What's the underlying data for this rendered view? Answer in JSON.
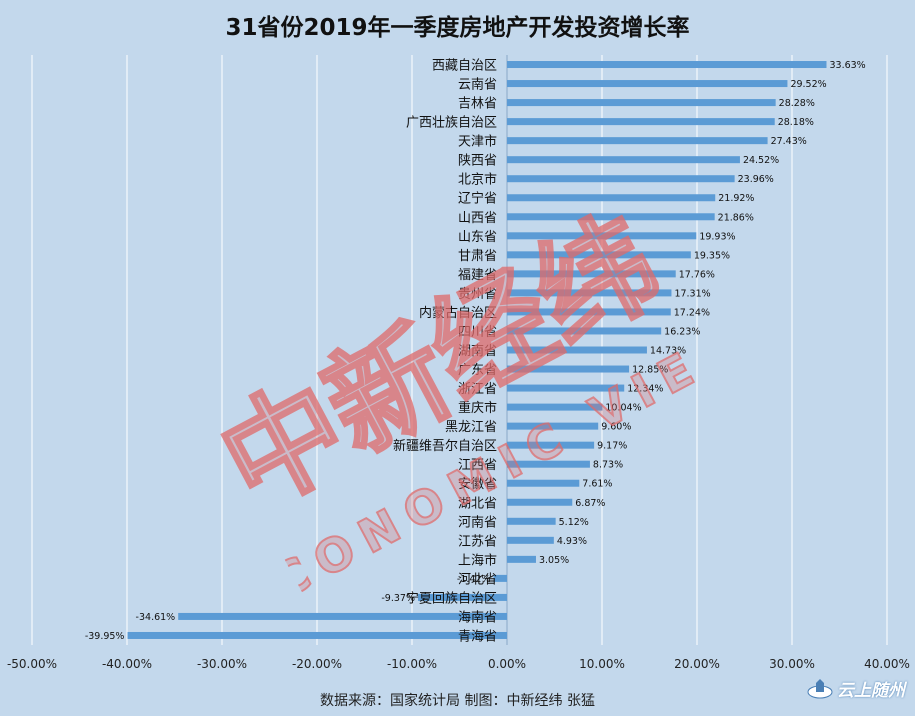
{
  "chart_data": {
    "type": "bar",
    "orientation": "horizontal",
    "title": "31省份2019年一季度房地产开发投资增长率",
    "categories": [
      "西藏自治区",
      "云南省",
      "吉林省",
      "广西壮族自治区",
      "天津市",
      "陕西省",
      "北京市",
      "辽宁省",
      "山西省",
      "山东省",
      "甘肃省",
      "福建省",
      "贵州省",
      "内蒙古自治区",
      "四川省",
      "湖南省",
      "广东省",
      "浙江省",
      "重庆市",
      "黑龙江省",
      "新疆维吾尔自治区",
      "江西省",
      "安徽省",
      "湖北省",
      "河南省",
      "江苏省",
      "上海市",
      "河北省",
      "宁夏回族自治区",
      "海南省",
      "青海省"
    ],
    "values": [
      33.63,
      29.52,
      28.28,
      28.18,
      27.43,
      24.52,
      23.96,
      21.92,
      21.86,
      19.93,
      19.35,
      17.76,
      17.31,
      17.24,
      16.23,
      14.73,
      12.85,
      12.34,
      10.04,
      9.6,
      9.17,
      8.73,
      7.61,
      6.87,
      5.12,
      4.93,
      3.05,
      -1.42,
      -9.37,
      -34.61,
      -39.95
    ],
    "data_labels": [
      "33.63%",
      "29.52%",
      "28.28%",
      "28.18%",
      "27.43%",
      "24.52%",
      "23.96%",
      "21.92%",
      "21.86%",
      "19.93%",
      "19.35%",
      "17.76%",
      "17.31%",
      "17.24%",
      "16.23%",
      "14.73%",
      "12.85%",
      "12.34%",
      "10.04%",
      "9.60%",
      "9.17%",
      "8.73%",
      "7.61%",
      "6.87%",
      "5.12%",
      "4.93%",
      "3.05%",
      "-1.42%",
      "-9.37%",
      "-34.61%",
      "-39.95%"
    ],
    "xlim": [
      -50,
      40
    ],
    "x_ticks": [
      -50,
      -40,
      -30,
      -20,
      -10,
      0,
      10,
      20,
      30,
      40
    ],
    "x_tick_labels": [
      "-50.00%",
      "-40.00%",
      "-30.00%",
      "-20.00%",
      "-10.00%",
      "0.00%",
      "10.00%",
      "20.00%",
      "30.00%",
      "40.00%"
    ],
    "grid": "vertical",
    "bar_color": "#5b9bd5",
    "background_color": "#c3d8ec"
  },
  "source_text": "数据来源：国家统计局  制图：中新经纬  张猛",
  "watermark": {
    "main_text": "中新经纬",
    "sub_text": "ECONOMIC VIEW",
    "color": "#e06a6a"
  },
  "logo_text": "云上随州"
}
